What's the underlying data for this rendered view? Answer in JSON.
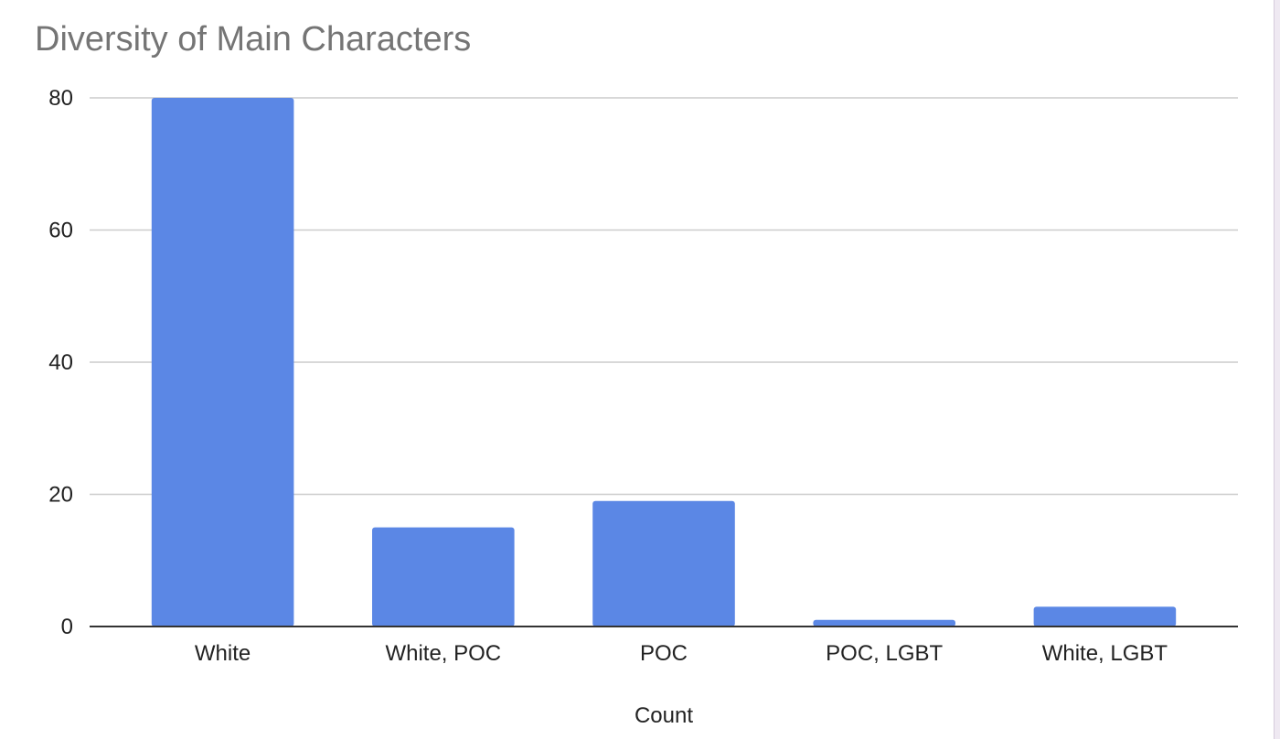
{
  "chart_data": {
    "type": "bar",
    "title": "Diversity of Main Characters",
    "xlabel": "Count",
    "ylabel": "",
    "categories": [
      "White",
      "White, POC",
      "POC",
      "POC, LGBT",
      "White, LGBT"
    ],
    "values": [
      80,
      15,
      19,
      1,
      3
    ],
    "ylim": [
      0,
      80
    ],
    "yticks": [
      "0",
      "20",
      "40",
      "60",
      "80"
    ],
    "grid": true,
    "legend": "none",
    "bar_color": "#5b87e5"
  }
}
